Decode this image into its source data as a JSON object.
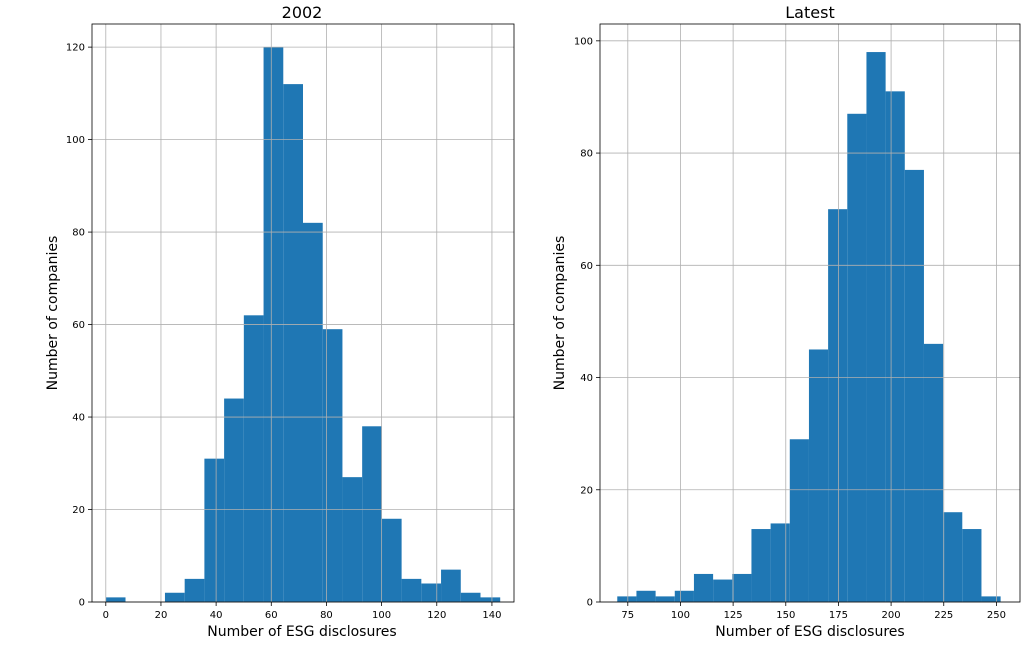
{
  "colors": {
    "bar": "#1f77b4",
    "grid": "#b0b0b0"
  },
  "chart_data": [
    {
      "type": "bar",
      "title": "2002",
      "xlabel": "Number of ESG disclosures",
      "ylabel": "Number of companies",
      "grid": true,
      "xlim": [
        -5,
        148
      ],
      "ylim": [
        0,
        125
      ],
      "xticks": [
        0,
        20,
        40,
        60,
        80,
        100,
        120,
        140
      ],
      "xtick_labels": [
        "0",
        "20",
        "40",
        "60",
        "80",
        "100",
        "120",
        "140"
      ],
      "yticks": [
        0,
        20,
        40,
        60,
        80,
        100,
        120
      ],
      "ytick_labels": [
        "0",
        "20",
        "40",
        "60",
        "80",
        "100",
        "120"
      ],
      "bin_edges": [
        0,
        7.15,
        14.3,
        21.45,
        28.6,
        35.75,
        42.9,
        50.05,
        57.2,
        64.35,
        71.5,
        78.65,
        85.8,
        92.95,
        100.1,
        107.25,
        114.4,
        121.55,
        128.7,
        135.85,
        143
      ],
      "values": [
        1,
        0,
        0,
        2,
        5,
        31,
        44,
        62,
        120,
        112,
        82,
        59,
        27,
        38,
        18,
        5,
        4,
        7,
        2,
        1
      ]
    },
    {
      "type": "bar",
      "title": "Latest",
      "xlabel": "Number of ESG disclosures",
      "ylabel": "Number of companies",
      "grid": true,
      "xlim": [
        61.8,
        261.2
      ],
      "ylim": [
        0,
        103
      ],
      "xticks": [
        75,
        100,
        125,
        150,
        175,
        200,
        225,
        250
      ],
      "xtick_labels": [
        "75",
        "100",
        "125",
        "150",
        "175",
        "200",
        "225",
        "250"
      ],
      "yticks": [
        0,
        20,
        40,
        60,
        80,
        100
      ],
      "ytick_labels": [
        "0",
        "20",
        "40",
        "60",
        "80",
        "100"
      ],
      "bin_edges": [
        70.0,
        79.1,
        88.2,
        97.3,
        106.4,
        115.5,
        124.6,
        133.7,
        142.8,
        151.9,
        161.0,
        170.1,
        179.2,
        188.3,
        197.4,
        206.5,
        215.6,
        224.7,
        233.8,
        242.9,
        252.0
      ],
      "values": [
        1,
        2,
        1,
        2,
        5,
        4,
        5,
        13,
        14,
        29,
        45,
        70,
        87,
        98,
        91,
        77,
        46,
        16,
        13,
        1
      ]
    }
  ]
}
